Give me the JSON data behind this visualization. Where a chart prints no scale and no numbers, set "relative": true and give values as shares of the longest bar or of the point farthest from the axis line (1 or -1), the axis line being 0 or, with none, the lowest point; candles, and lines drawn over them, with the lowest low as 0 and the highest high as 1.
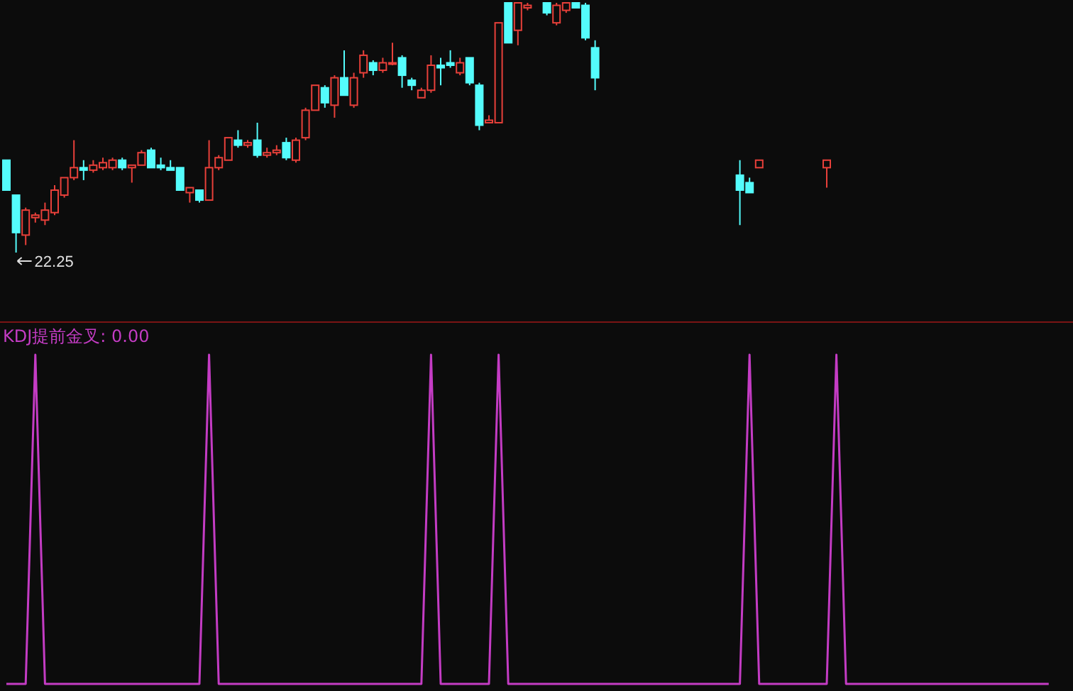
{
  "chart_data": [
    {
      "type": "candlestick",
      "relative": true,
      "annotations": [
        "22.25"
      ],
      "categories": [
        null,
        null,
        null,
        null,
        null,
        null,
        null,
        null,
        null,
        null,
        null,
        null,
        null,
        null,
        null,
        null,
        null,
        null,
        null,
        null,
        null,
        null,
        null,
        null,
        null,
        null,
        null,
        null,
        null,
        null,
        null,
        null,
        null,
        null,
        null,
        null,
        null,
        null,
        null,
        null,
        null,
        null,
        null,
        null,
        null,
        null,
        null,
        null,
        null,
        null,
        null,
        null,
        null,
        null,
        null,
        null,
        null,
        null,
        null,
        null,
        null,
        null,
        null,
        null,
        null,
        null,
        null,
        null,
        null,
        null,
        null,
        null,
        null,
        null,
        null,
        null,
        null,
        null,
        null,
        null,
        null,
        null,
        null,
        null,
        null,
        null,
        null,
        null,
        null,
        null,
        null,
        null,
        null,
        null,
        null,
        null,
        null,
        null,
        null,
        null,
        null,
        null,
        null,
        null,
        null,
        null,
        null,
        null,
        null
      ],
      "ohlc": [
        [
          0.37,
          0.37,
          0.25,
          0.25
        ],
        [
          0.23,
          0.23,
          0,
          0.08
        ],
        [
          0.07,
          0.18,
          0.03,
          0.17
        ],
        [
          0.14,
          0.16,
          0.12,
          0.15
        ],
        [
          0.13,
          0.2,
          0.11,
          0.17
        ],
        [
          0.16,
          0.27,
          0.15,
          0.25
        ],
        [
          0.23,
          0.3,
          0.22,
          0.3
        ],
        [
          0.3,
          0.45,
          0.29,
          0.34
        ],
        [
          0.34,
          0.37,
          0.29,
          0.33
        ],
        [
          0.33,
          0.37,
          0.32,
          0.35
        ],
        [
          0.34,
          0.38,
          0.33,
          0.36
        ],
        [
          0.34,
          0.38,
          0.33,
          0.37
        ],
        [
          0.37,
          0.38,
          0.33,
          0.34
        ],
        [
          0.34,
          0.35,
          0.28,
          0.35
        ],
        [
          0.35,
          0.41,
          0.35,
          0.4
        ],
        [
          0.41,
          0.42,
          0.34,
          0.34
        ],
        [
          0.35,
          0.38,
          0.33,
          0.34
        ],
        [
          0.34,
          0.37,
          0.33,
          0.33
        ],
        [
          0.34,
          0.34,
          0.25,
          0.25
        ],
        [
          0.24,
          0.26,
          0.2,
          0.26
        ],
        [
          0.25,
          0.25,
          0.2,
          0.21
        ],
        [
          0.21,
          0.45,
          0.21,
          0.34
        ],
        [
          0.34,
          0.39,
          0.33,
          0.38
        ],
        [
          0.37,
          0.46,
          0.37,
          0.46
        ],
        [
          0.45,
          0.49,
          0.42,
          0.43
        ],
        [
          0.43,
          0.45,
          0.42,
          0.44
        ],
        [
          0.45,
          0.52,
          0.38,
          0.39
        ],
        [
          0.39,
          0.42,
          0.38,
          0.4
        ],
        [
          0.4,
          0.43,
          0.39,
          0.41
        ],
        [
          0.44,
          0.46,
          0.37,
          0.38
        ],
        [
          0.37,
          0.46,
          0.36,
          0.45
        ],
        [
          0.46,
          0.58,
          0.45,
          0.57
        ],
        [
          0.57,
          0.67,
          0.57,
          0.67
        ],
        [
          0.66,
          0.67,
          0.58,
          0.6
        ],
        [
          0.59,
          0.71,
          0.54,
          0.7
        ],
        [
          0.7,
          0.81,
          0.63,
          0.63
        ],
        [
          0.59,
          0.72,
          0.58,
          0.7
        ],
        [
          0.72,
          0.81,
          0.7,
          0.79
        ],
        [
          0.76,
          0.77,
          0.71,
          0.73
        ],
        [
          0.73,
          0.78,
          0.72,
          0.76
        ],
        [
          0.76,
          0.84,
          0.75,
          0.76
        ],
        [
          0.78,
          0.79,
          0.66,
          0.71
        ],
        [
          0.69,
          0.7,
          0.65,
          0.67
        ],
        [
          0.62,
          0.66,
          0.62,
          0.65
        ],
        [
          0.65,
          0.79,
          0.64,
          0.75
        ],
        [
          0.75,
          0.78,
          0.67,
          0.74
        ],
        [
          0.76,
          0.81,
          0.74,
          0.75
        ],
        [
          0.72,
          0.78,
          0.71,
          0.76
        ],
        [
          0.78,
          0.78,
          0.67,
          0.68
        ],
        [
          0.67,
          0.68,
          0.49,
          0.51
        ],
        [
          0.52,
          0.55,
          0.52,
          0.53
        ],
        [
          0.52,
          0.92,
          0.52,
          0.92
        ],
        [
          1,
          1,
          0.84,
          0.84
        ],
        [
          0.89,
          1,
          0.83,
          1
        ],
        [
          0.98,
          1,
          0.97,
          0.99
        ],
        null,
        [
          1,
          1,
          0.95,
          0.96
        ],
        [
          0.92,
          1,
          0.91,
          0.99
        ],
        [
          0.97,
          1,
          0.96,
          1
        ],
        [
          1,
          1,
          0.98,
          0.98
        ],
        [
          0.99,
          1,
          0.85,
          0.86
        ],
        [
          0.82,
          0.85,
          0.65,
          0.7
        ],
        null,
        null,
        null,
        null,
        null,
        null,
        null,
        null,
        null,
        null,
        null,
        null,
        null,
        null,
        [
          0.31,
          0.37,
          0.11,
          0.25
        ],
        [
          0.28,
          0.3,
          0.24,
          0.24
        ],
        [
          0.34,
          0.37,
          0.34,
          0.37
        ],
        null,
        null,
        null,
        null,
        null,
        null,
        [
          0.34,
          0.37,
          0.26,
          0.37
        ],
        null,
        null,
        null,
        null,
        null,
        null,
        null,
        null,
        null,
        null,
        null,
        null,
        null,
        null,
        null,
        null,
        null,
        null,
        null,
        null,
        null,
        null,
        null
      ],
      "colors": [
        "#54fcfc",
        "#54fcfc",
        "#e8403a",
        "#e8403a",
        "#e8403a",
        "#e8403a",
        "#e8403a",
        "#e8403a",
        "#54fcfc",
        "#e8403a",
        "#e8403a",
        "#e8403a",
        "#54fcfc",
        "#e8403a",
        "#e8403a",
        "#54fcfc",
        "#54fcfc",
        "#54fcfc",
        "#54fcfc",
        "#e8403a",
        "#54fcfc",
        "#e8403a",
        "#e8403a",
        "#e8403a",
        "#54fcfc",
        "#e8403a",
        "#54fcfc",
        "#e8403a",
        "#e8403a",
        "#54fcfc",
        "#e8403a",
        "#e8403a",
        "#e8403a",
        "#54fcfc",
        "#e8403a",
        "#54fcfc",
        "#e8403a",
        "#e8403a",
        "#54fcfc",
        "#e8403a",
        "#e8403a",
        "#54fcfc",
        "#54fcfc",
        "#e8403a",
        "#e8403a",
        "#54fcfc",
        "#54fcfc",
        "#e8403a",
        "#54fcfc",
        "#54fcfc",
        "#e8403a",
        "#e8403a",
        "#54fcfc",
        "#e8403a",
        "#e8403a",
        null,
        "#54fcfc",
        "#e8403a",
        "#e8403a",
        "#54fcfc",
        "#54fcfc",
        "#54fcfc",
        null,
        null,
        null,
        null,
        null,
        null,
        null,
        null,
        null,
        null,
        null,
        null,
        null,
        null,
        "#54fcfc",
        "#54fcfc",
        "#e8403a",
        null,
        null,
        null,
        null,
        null,
        null,
        "#e8403a",
        null,
        null,
        null,
        null,
        null,
        null,
        null,
        null,
        null,
        null,
        null,
        null,
        null,
        null,
        null,
        null,
        null,
        null,
        null,
        null,
        null,
        null,
        null
      ]
    },
    {
      "type": "line",
      "relative": true,
      "title": "KDJ提前金叉: 0.00",
      "categories": [
        null,
        null,
        null,
        null,
        null,
        null,
        null,
        null,
        null,
        null,
        null,
        null,
        null,
        null,
        null,
        null,
        null,
        null,
        null,
        null,
        null,
        null,
        null,
        null,
        null,
        null,
        null,
        null,
        null,
        null,
        null,
        null,
        null,
        null,
        null,
        null,
        null,
        null,
        null,
        null,
        null,
        null,
        null,
        null,
        null,
        null,
        null,
        null,
        null,
        null,
        null,
        null,
        null,
        null,
        null,
        null,
        null,
        null,
        null,
        null,
        null,
        null,
        null,
        null,
        null,
        null,
        null,
        null,
        null,
        null,
        null,
        null,
        null,
        null,
        null,
        null,
        null,
        null,
        null,
        null,
        null,
        null,
        null,
        null,
        null,
        null,
        null,
        null,
        null,
        null,
        null,
        null,
        null,
        null,
        null,
        null,
        null,
        null,
        null,
        null,
        null,
        null,
        null,
        null,
        null,
        null,
        null,
        null,
        null
      ],
      "series": [
        {
          "color": "#c43cc4",
          "values": [
            0,
            0,
            0,
            1,
            0,
            0,
            0,
            0,
            0,
            0,
            0,
            0,
            0,
            0,
            0,
            0,
            0,
            0,
            0,
            0,
            0,
            1,
            0,
            0,
            0,
            0,
            0,
            0,
            0,
            0,
            0,
            0,
            0,
            0,
            0,
            0,
            0,
            0,
            0,
            0,
            0,
            0,
            0,
            0,
            1,
            0,
            0,
            0,
            0,
            0,
            0,
            1,
            0,
            0,
            0,
            0,
            0,
            0,
            0,
            0,
            0,
            0,
            0,
            0,
            0,
            0,
            0,
            0,
            0,
            0,
            0,
            0,
            0,
            0,
            0,
            0,
            0,
            1,
            0,
            0,
            0,
            0,
            0,
            0,
            0,
            0,
            1,
            0,
            0,
            0,
            0,
            0,
            0,
            0,
            0,
            0,
            0,
            0,
            0,
            0,
            0,
            0,
            0,
            0,
            0,
            0,
            0,
            0,
            0
          ]
        }
      ]
    }
  ]
}
